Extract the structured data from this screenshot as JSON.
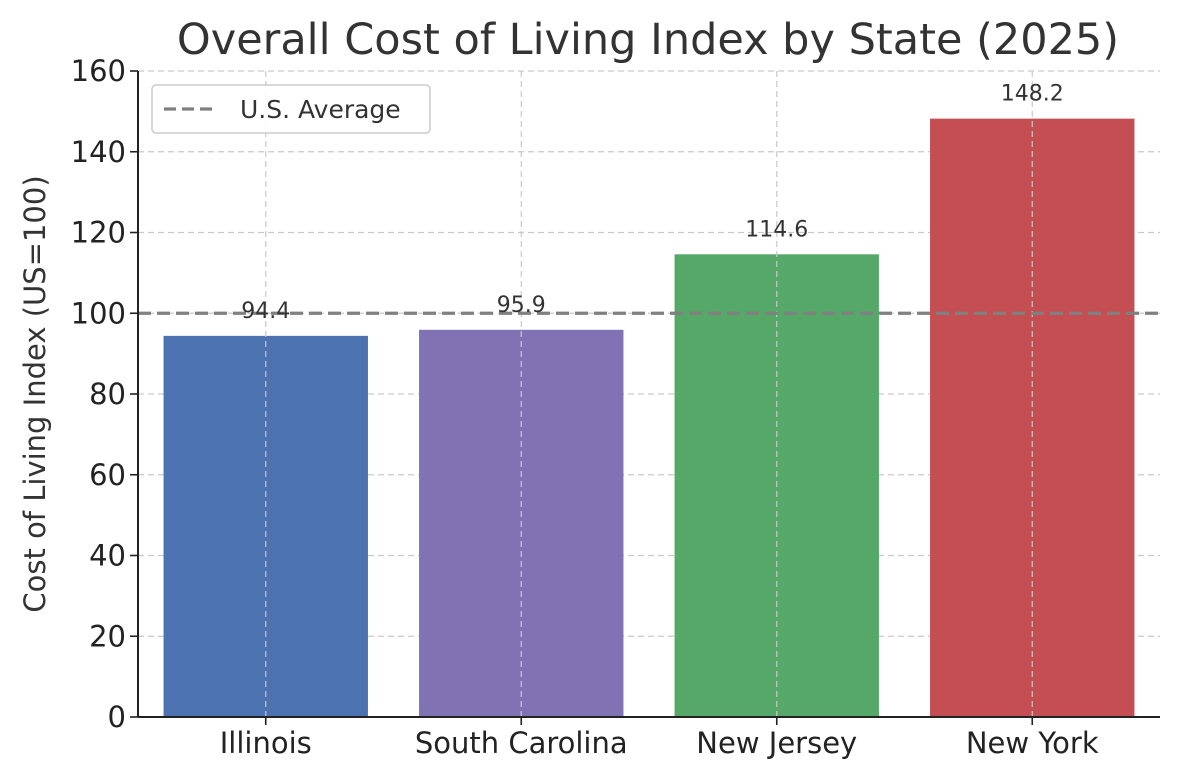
{
  "chart_data": {
    "type": "bar",
    "title": "Overall Cost of Living Index by State (2025)",
    "xlabel": "",
    "ylabel": "Cost of Living Index (US=100)",
    "categories": [
      "Illinois",
      "South Carolina",
      "New Jersey",
      "New York"
    ],
    "values": [
      94.4,
      95.9,
      114.6,
      148.2
    ],
    "value_labels": [
      "94.4",
      "95.9",
      "114.6",
      "148.2"
    ],
    "bar_colors": [
      "#4c72b0",
      "#8172b3",
      "#55a868",
      "#c44e52"
    ],
    "ylim": [
      0,
      160
    ],
    "yticks": [
      0,
      20,
      40,
      60,
      80,
      100,
      120,
      140,
      160
    ],
    "grid": true,
    "reference_line": {
      "value": 100,
      "label": "U.S. Average",
      "style": "dashed",
      "color": "#808080"
    },
    "legend": {
      "placement": "top-left",
      "entries": [
        "U.S. Average"
      ]
    }
  }
}
